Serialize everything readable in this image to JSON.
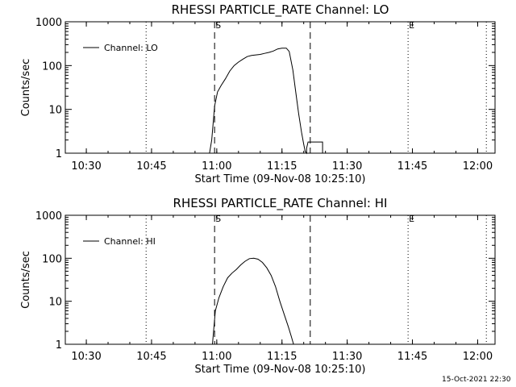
{
  "footer": "15-Oct-2021 22:30",
  "chart_data": [
    {
      "type": "line",
      "title": "RHESSI PARTICLE_RATE Channel: LO",
      "xlabel": "Start Time (09-Nov-08 10:25:10)",
      "ylabel": "Counts/sec",
      "yscale": "log",
      "xlim": [
        "10:25:10",
        "12:04:00"
      ],
      "ylim": [
        1,
        1000
      ],
      "xticks": [
        "10:30",
        "10:45",
        "11:00",
        "11:15",
        "11:30",
        "11:45",
        "12:00"
      ],
      "yticks": [
        "1",
        "10",
        "100",
        "1000"
      ],
      "legend": {
        "position": "top-left",
        "entries": [
          "Channel: LO"
        ]
      },
      "dotted_lines_x": [
        "10:43:45",
        "11:44:00",
        "12:02:00"
      ],
      "dashed_lines_x": [
        "10:59:30",
        "11:21:30"
      ],
      "markers": [
        {
          "label": "S",
          "x": "10:59:30"
        },
        {
          "label": "E",
          "x": "11:44:00"
        }
      ],
      "series": [
        {
          "name": "Channel: LO",
          "x": [
            "10:58:20",
            "10:58:50",
            "10:59:30",
            "11:00:10",
            "11:01:00",
            "11:02:00",
            "11:03:00",
            "11:04:00",
            "11:05:00",
            "11:06:00",
            "11:07:00",
            "11:08:00",
            "11:09:00",
            "11:10:00",
            "11:11:00",
            "11:12:00",
            "11:13:00",
            "11:14:00",
            "11:15:00",
            "11:16:00",
            "11:16:40",
            "11:17:30",
            "11:18:10",
            "11:18:50",
            "11:19:30",
            "11:20:00",
            "11:20:20",
            "11:20:40",
            "11:20:40",
            "11:21:00",
            "11:21:30",
            "11:21:30",
            "11:24:20",
            "11:24:20"
          ],
          "y": [
            1,
            2,
            12,
            25,
            35,
            50,
            75,
            100,
            120,
            140,
            160,
            170,
            175,
            180,
            190,
            200,
            215,
            240,
            250,
            250,
            210,
            80,
            25,
            8,
            3,
            1.6,
            1.1,
            1,
            1.3,
            1.8,
            1.8,
            1.8,
            1.8,
            1
          ]
        }
      ]
    },
    {
      "type": "line",
      "title": "RHESSI PARTICLE_RATE Channel: HI",
      "xlabel": "Start Time (09-Nov-08 10:25:10)",
      "ylabel": "Counts/sec",
      "yscale": "log",
      "xlim": [
        "10:25:10",
        "12:04:00"
      ],
      "ylim": [
        1,
        1000
      ],
      "xticks": [
        "10:30",
        "10:45",
        "11:00",
        "11:15",
        "11:30",
        "11:45",
        "12:00"
      ],
      "yticks": [
        "1",
        "10",
        "100",
        "1000"
      ],
      "legend": {
        "position": "top-left",
        "entries": [
          "Channel: HI"
        ]
      },
      "dotted_lines_x": [
        "10:43:45",
        "11:44:00",
        "12:02:00"
      ],
      "dashed_lines_x": [
        "10:59:30",
        "11:21:30"
      ],
      "markers": [
        {
          "label": "S",
          "x": "10:59:30"
        },
        {
          "label": "E",
          "x": "11:44:00"
        }
      ],
      "series": [
        {
          "name": "Channel: HI",
          "x": [
            "10:59:00",
            "10:59:40",
            "11:00:30",
            "11:01:30",
            "11:02:30",
            "11:03:30",
            "11:04:30",
            "11:05:30",
            "11:06:30",
            "11:07:30",
            "11:08:30",
            "11:09:30",
            "11:10:30",
            "11:11:30",
            "11:12:30",
            "11:13:30",
            "11:14:30",
            "11:15:30",
            "11:16:30",
            "11:17:10",
            "11:17:40"
          ],
          "y": [
            1,
            6,
            12,
            22,
            35,
            45,
            55,
            70,
            85,
            98,
            100,
            95,
            80,
            60,
            40,
            22,
            10,
            5,
            2.5,
            1.5,
            1
          ]
        }
      ]
    }
  ]
}
